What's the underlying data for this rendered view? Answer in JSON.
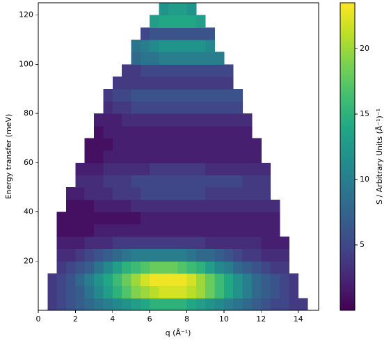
{
  "chart_data": {
    "type": "heatmap",
    "xlabel": "q (Å⁻¹)",
    "ylabel": "Energy transfer (meV)",
    "colorbar_label": "S / Arbitrary Units (Å⁻¹)⁻¹",
    "colormap": "viridis",
    "xlim": [
      0,
      15.1
    ],
    "xticks": [
      0,
      2,
      4,
      6,
      8,
      10,
      12,
      14
    ],
    "ylim": [
      0,
      125
    ],
    "yticks": [
      20,
      40,
      60,
      80,
      100,
      120
    ],
    "zlim": [
      0,
      23.5
    ],
    "zticks": [
      5,
      10,
      15,
      20
    ],
    "x_edges": [
      0.5,
      1,
      1.5,
      2,
      2.5,
      3,
      3.5,
      4,
      4.5,
      5,
      5.5,
      6,
      6.5,
      7,
      7.5,
      8,
      8.5,
      9,
      9.5,
      10,
      10.5,
      11,
      11.5,
      12,
      12.5,
      13,
      13.5,
      14,
      14.5
    ],
    "y_edges": [
      0,
      5,
      10,
      15,
      20,
      25,
      30,
      35,
      40,
      45,
      50,
      55,
      60,
      65,
      70,
      75,
      80,
      85,
      90,
      95,
      100,
      105,
      110,
      115,
      120,
      125
    ],
    "z": [
      [
        4,
        5,
        6,
        7,
        8,
        9,
        10,
        11,
        12,
        13,
        14,
        15,
        15,
        15,
        15,
        14,
        13,
        12,
        11,
        10,
        9,
        8,
        7,
        6,
        5,
        5,
        4,
        4
      ],
      [
        4,
        5,
        6,
        7,
        9,
        11,
        13,
        15,
        17,
        19,
        20,
        21,
        22,
        22,
        22,
        21,
        20,
        18,
        16,
        14,
        12,
        10,
        8,
        7,
        6,
        5,
        4,
        null
      ],
      [
        4,
        5,
        6,
        8,
        10,
        12,
        14,
        16,
        18,
        20,
        22,
        23,
        23,
        23,
        23,
        22,
        20,
        18,
        16,
        14,
        12,
        10,
        8,
        7,
        6,
        5,
        4,
        null
      ],
      [
        null,
        4,
        5,
        6,
        7,
        9,
        11,
        13,
        15,
        16,
        17,
        18,
        18,
        18,
        17,
        16,
        15,
        13,
        11,
        10,
        8,
        7,
        6,
        5,
        4,
        4,
        null,
        null
      ],
      [
        null,
        3,
        3,
        4,
        5,
        6,
        7,
        8,
        9,
        10,
        10,
        10,
        10,
        10,
        10,
        9,
        8,
        8,
        7,
        6,
        5,
        4,
        4,
        3,
        3,
        3,
        null,
        null
      ],
      [
        null,
        2,
        2,
        2,
        3,
        3,
        3,
        4,
        4,
        4,
        4,
        4,
        4,
        4,
        4,
        4,
        4,
        3,
        3,
        3,
        3,
        3,
        3,
        2,
        2,
        2,
        null,
        null
      ],
      [
        null,
        1,
        1,
        1,
        1,
        2,
        2,
        2,
        2,
        2,
        2,
        2,
        2,
        2,
        2,
        2,
        2,
        2,
        2,
        2,
        2,
        2,
        2,
        2,
        2,
        null,
        null,
        null
      ],
      [
        null,
        1,
        1,
        1,
        1,
        1,
        1,
        1,
        1,
        1,
        2,
        2,
        2,
        2,
        2,
        2,
        2,
        2,
        2,
        2,
        2,
        2,
        2,
        2,
        2,
        null,
        null,
        null
      ],
      [
        null,
        null,
        1,
        1,
        1,
        2,
        2,
        2,
        2,
        3,
        3,
        3,
        3,
        3,
        3,
        3,
        3,
        3,
        3,
        3,
        3,
        3,
        3,
        3,
        3,
        null,
        null,
        null
      ],
      [
        null,
        null,
        2,
        2,
        3,
        3,
        3,
        4,
        4,
        4,
        5,
        5,
        5,
        5,
        5,
        5,
        5,
        4,
        4,
        4,
        4,
        4,
        4,
        4,
        null,
        null,
        null,
        null
      ],
      [
        null,
        null,
        null,
        3,
        3,
        3,
        4,
        4,
        4,
        5,
        5,
        5,
        5,
        5,
        5,
        5,
        5,
        5,
        5,
        5,
        5,
        4,
        4,
        4,
        null,
        null,
        null,
        null
      ],
      [
        null,
        null,
        null,
        2,
        2,
        2,
        3,
        3,
        3,
        3,
        3,
        4,
        4,
        4,
        4,
        4,
        4,
        3,
        3,
        3,
        3,
        3,
        3,
        3,
        null,
        null,
        null,
        null
      ],
      [
        null,
        null,
        null,
        null,
        1,
        1,
        2,
        2,
        2,
        2,
        2,
        2,
        2,
        2,
        2,
        2,
        2,
        2,
        2,
        2,
        2,
        2,
        2,
        null,
        null,
        null,
        null,
        null
      ],
      [
        null,
        null,
        null,
        null,
        1,
        1,
        1,
        2,
        2,
        2,
        2,
        2,
        2,
        2,
        2,
        2,
        2,
        2,
        2,
        2,
        2,
        2,
        2,
        null,
        null,
        null,
        null,
        null
      ],
      [
        null,
        null,
        null,
        null,
        null,
        1,
        2,
        2,
        2,
        2,
        2,
        2,
        2,
        2,
        2,
        2,
        2,
        2,
        2,
        2,
        2,
        2,
        null,
        null,
        null,
        null,
        null,
        null
      ],
      [
        null,
        null,
        null,
        null,
        null,
        2,
        2,
        2,
        3,
        3,
        3,
        3,
        3,
        3,
        3,
        3,
        3,
        3,
        3,
        3,
        3,
        3,
        null,
        null,
        null,
        null,
        null,
        null
      ],
      [
        null,
        null,
        null,
        null,
        null,
        null,
        3,
        4,
        4,
        5,
        5,
        5,
        5,
        5,
        5,
        5,
        5,
        5,
        5,
        5,
        5,
        null,
        null,
        null,
        null,
        null,
        null,
        null
      ],
      [
        null,
        null,
        null,
        null,
        null,
        null,
        4,
        5,
        5,
        6,
        6,
        6,
        6,
        6,
        6,
        6,
        6,
        6,
        6,
        6,
        6,
        null,
        null,
        null,
        null,
        null,
        null,
        null
      ],
      [
        null,
        null,
        null,
        null,
        null,
        null,
        null,
        4,
        4,
        4,
        4,
        4,
        4,
        4,
        4,
        4,
        4,
        4,
        4,
        4,
        null,
        null,
        null,
        null,
        null,
        null,
        null,
        null
      ],
      [
        null,
        null,
        null,
        null,
        null,
        null,
        null,
        null,
        4,
        4,
        5,
        5,
        5,
        5,
        5,
        5,
        5,
        5,
        5,
        5,
        null,
        null,
        null,
        null,
        null,
        null,
        null,
        null
      ],
      [
        null,
        null,
        null,
        null,
        null,
        null,
        null,
        null,
        null,
        8,
        9,
        9,
        10,
        10,
        10,
        10,
        10,
        10,
        10,
        null,
        null,
        null,
        null,
        null,
        null,
        null,
        null,
        null
      ],
      [
        null,
        null,
        null,
        null,
        null,
        null,
        null,
        null,
        null,
        9,
        10,
        11,
        12,
        12,
        12,
        12,
        12,
        11,
        null,
        null,
        null,
        null,
        null,
        null,
        null,
        null,
        null,
        null
      ],
      [
        null,
        null,
        null,
        null,
        null,
        null,
        null,
        null,
        null,
        null,
        5,
        6,
        6,
        6,
        6,
        6,
        6,
        6,
        null,
        null,
        null,
        null,
        null,
        null,
        null,
        null,
        null,
        null
      ],
      [
        null,
        null,
        null,
        null,
        null,
        null,
        null,
        null,
        null,
        null,
        null,
        13,
        14,
        14,
        14,
        14,
        13,
        null,
        null,
        null,
        null,
        null,
        null,
        null,
        null,
        null,
        null,
        null
      ],
      [
        null,
        null,
        null,
        null,
        null,
        null,
        null,
        null,
        null,
        null,
        null,
        null,
        12,
        13,
        13,
        12,
        null,
        null,
        null,
        null,
        null,
        null,
        null,
        null,
        null,
        null,
        null,
        null
      ]
    ]
  }
}
